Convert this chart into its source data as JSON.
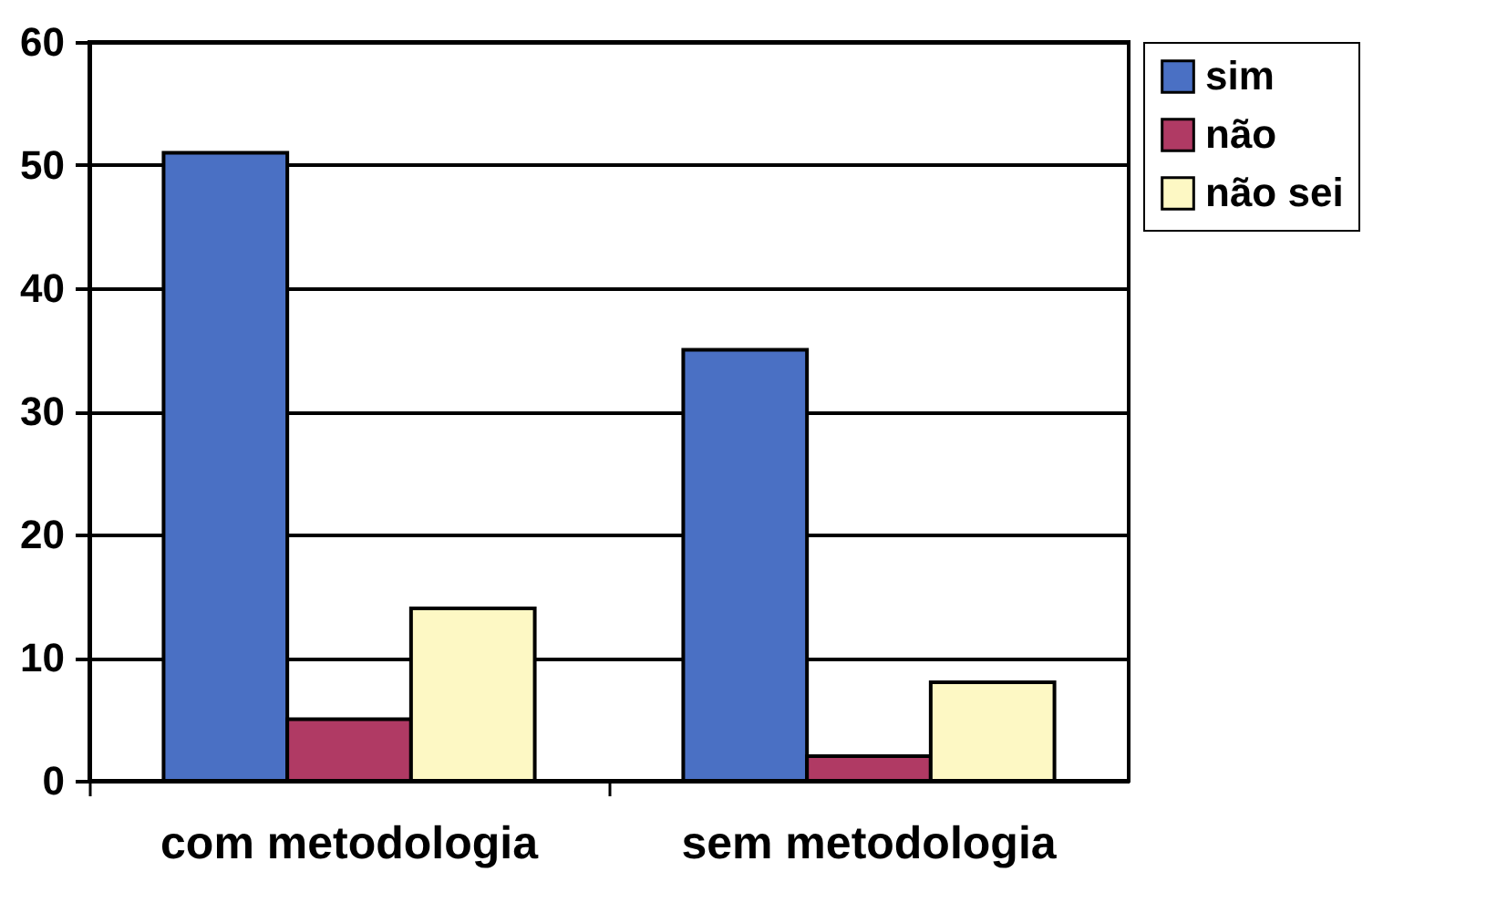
{
  "chart_data": {
    "type": "bar",
    "categories": [
      "com metodologia",
      "sem metodologia"
    ],
    "series": [
      {
        "name": "sim",
        "color": "#4a70c4",
        "values": [
          51,
          35
        ]
      },
      {
        "name": "não",
        "color": "#b03a64",
        "values": [
          5,
          2
        ]
      },
      {
        "name": "não sei",
        "color": "#fdf8c4",
        "values": [
          14,
          8
        ]
      }
    ],
    "ylim": [
      0,
      60
    ],
    "yticks": [
      0,
      10,
      20,
      30,
      40,
      50,
      60
    ],
    "grid": "y",
    "legend": "right"
  }
}
